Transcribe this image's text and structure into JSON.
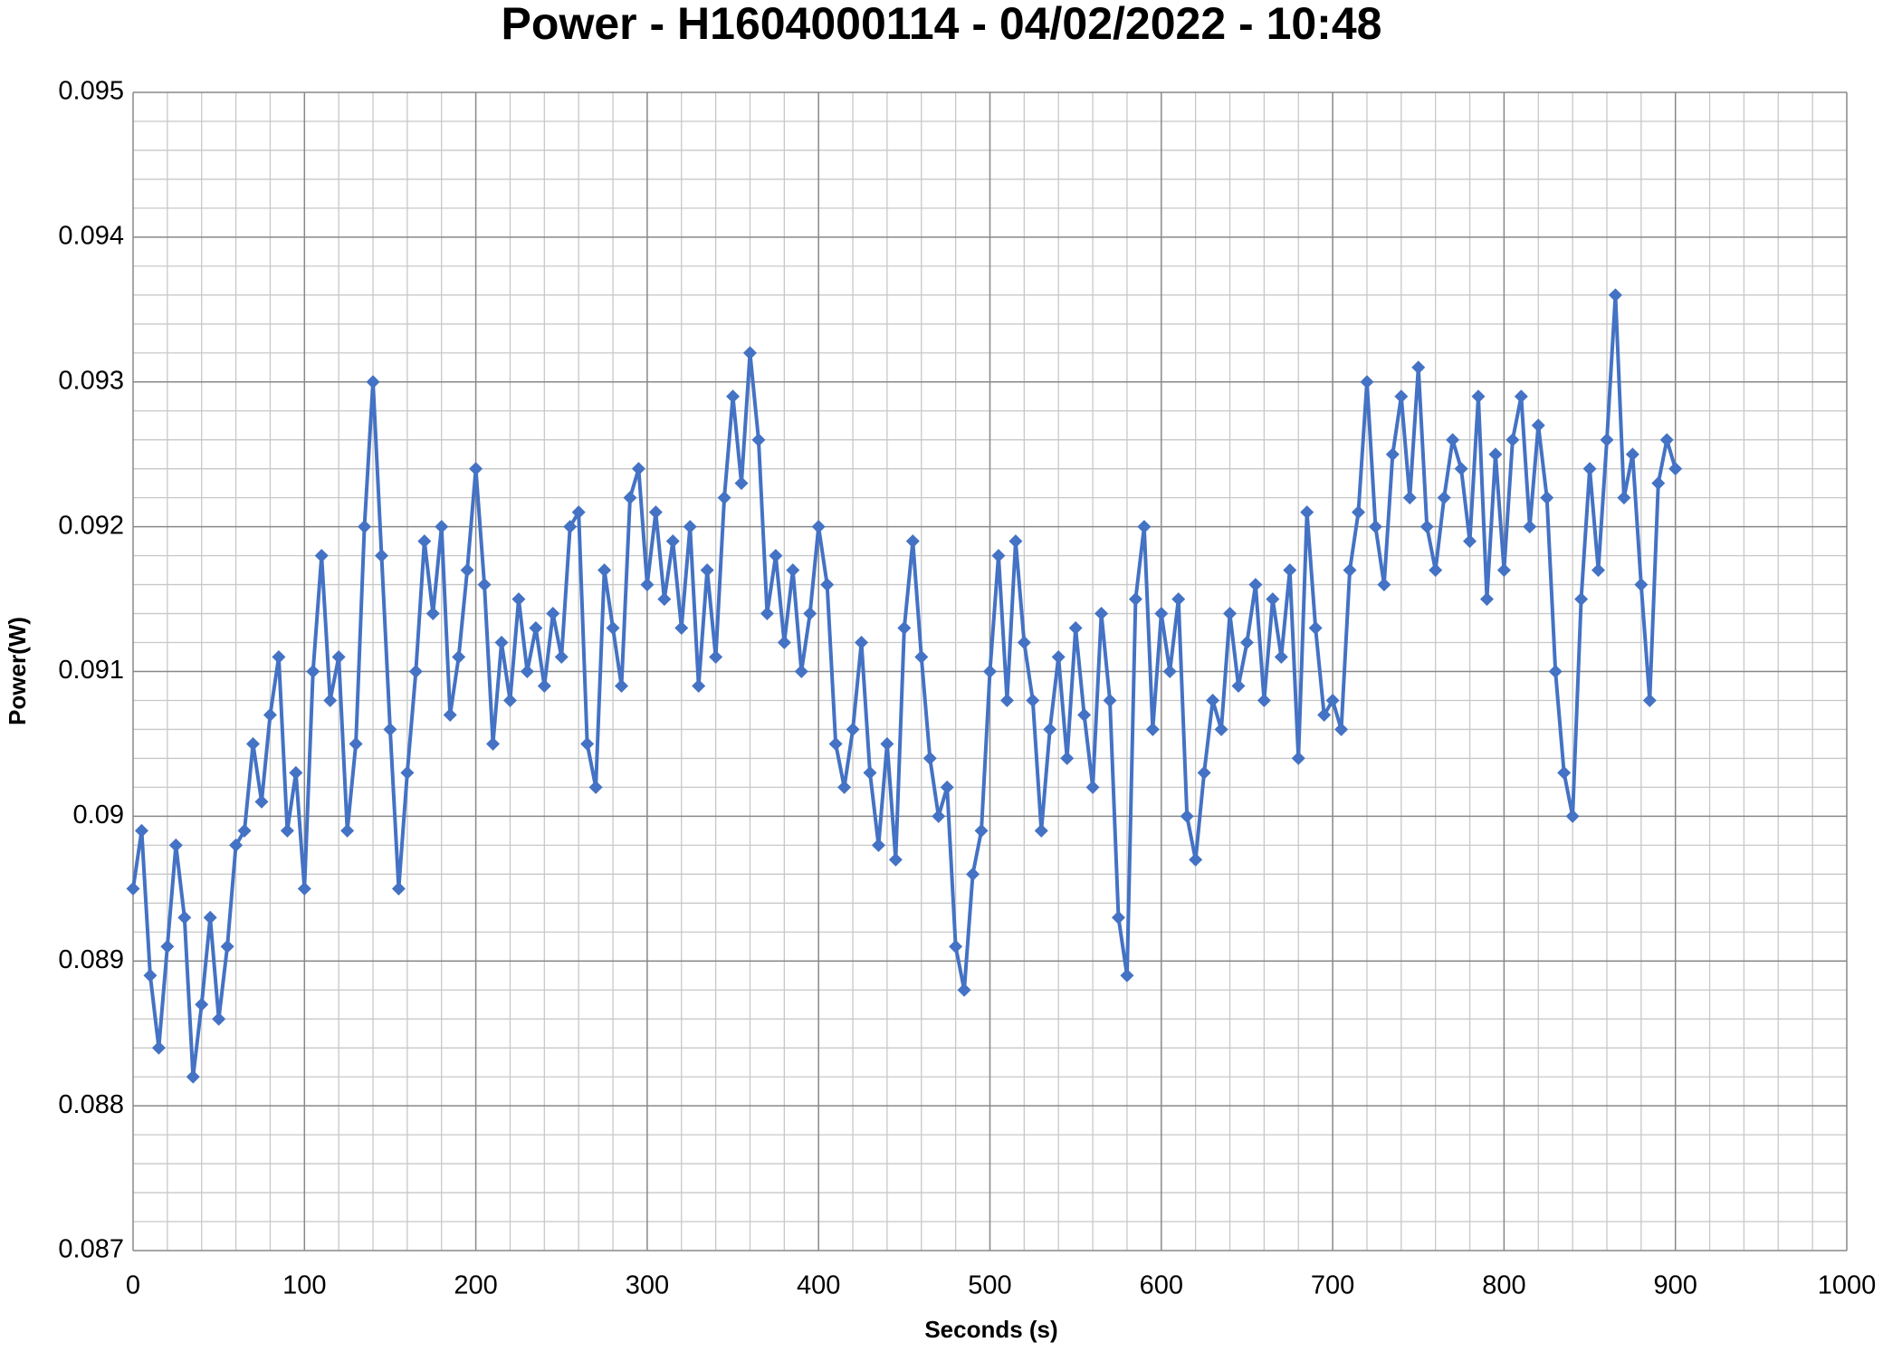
{
  "chart_data": {
    "type": "line",
    "title": "Power - H1604000114 - 04/02/2022 - 10:48",
    "x_label": "Seconds (s)",
    "y_label": "Power(W)",
    "color": "#4472c4",
    "marker": "diamond",
    "grid": true,
    "minor_divisions": 5,
    "xlim": [
      0,
      1000
    ],
    "xticks": [
      0,
      100,
      200,
      300,
      400,
      500,
      600,
      700,
      800,
      900,
      1000
    ],
    "ylim": [
      0.087,
      0.095
    ],
    "yticks": [
      0.087,
      0.088,
      0.089,
      0.09,
      0.091,
      0.092,
      0.093,
      0.094,
      0.095
    ],
    "x": [
      0,
      5,
      10,
      15,
      20,
      25,
      30,
      35,
      40,
      45,
      50,
      55,
      60,
      65,
      70,
      75,
      80,
      85,
      90,
      95,
      100,
      105,
      110,
      115,
      120,
      125,
      130,
      135,
      140,
      145,
      150,
      155,
      160,
      165,
      170,
      175,
      180,
      185,
      190,
      195,
      200,
      205,
      210,
      215,
      220,
      225,
      230,
      235,
      240,
      245,
      250,
      255,
      260,
      265,
      270,
      275,
      280,
      285,
      290,
      295,
      300,
      305,
      310,
      315,
      320,
      325,
      330,
      335,
      340,
      345,
      350,
      355,
      360,
      365,
      370,
      375,
      380,
      385,
      390,
      395,
      400,
      405,
      410,
      415,
      420,
      425,
      430,
      435,
      440,
      445,
      450,
      455,
      460,
      465,
      470,
      475,
      480,
      485,
      490,
      495,
      500,
      505,
      510,
      515,
      520,
      525,
      530,
      535,
      540,
      545,
      550,
      555,
      560,
      565,
      570,
      575,
      580,
      585,
      590,
      595,
      600,
      605,
      610,
      615,
      620,
      625,
      630,
      635,
      640,
      645,
      650,
      655,
      660,
      665,
      670,
      675,
      680,
      685,
      690,
      695,
      700,
      705,
      710,
      715,
      720,
      725,
      730,
      735,
      740,
      745,
      750,
      755,
      760,
      765,
      770,
      775,
      780,
      785,
      790,
      795,
      800,
      805,
      810,
      815,
      820,
      825,
      830,
      835,
      840,
      845,
      850,
      855,
      860,
      865,
      870,
      875,
      880,
      885,
      890,
      895,
      900
    ],
    "values": [
      0.0895,
      0.0899,
      0.0889,
      0.0884,
      0.0891,
      0.0898,
      0.0893,
      0.0882,
      0.0887,
      0.0893,
      0.0886,
      0.0891,
      0.0898,
      0.0899,
      0.0905,
      0.0901,
      0.0907,
      0.0911,
      0.0899,
      0.0903,
      0.0895,
      0.091,
      0.0918,
      0.0908,
      0.0911,
      0.0899,
      0.0905,
      0.092,
      0.093,
      0.0918,
      0.0906,
      0.0895,
      0.0903,
      0.091,
      0.0919,
      0.0914,
      0.092,
      0.0907,
      0.0911,
      0.0917,
      0.0924,
      0.0916,
      0.0905,
      0.0912,
      0.0908,
      0.0915,
      0.091,
      0.0913,
      0.0909,
      0.0914,
      0.0911,
      0.092,
      0.0921,
      0.0905,
      0.0902,
      0.0917,
      0.0913,
      0.0909,
      0.0922,
      0.0924,
      0.0916,
      0.0921,
      0.0915,
      0.0919,
      0.0913,
      0.092,
      0.0909,
      0.0917,
      0.0911,
      0.0922,
      0.0929,
      0.0923,
      0.0932,
      0.0926,
      0.0914,
      0.0918,
      0.0912,
      0.0917,
      0.091,
      0.0914,
      0.092,
      0.0916,
      0.0905,
      0.0902,
      0.0906,
      0.0912,
      0.0903,
      0.0898,
      0.0905,
      0.0897,
      0.0913,
      0.0919,
      0.0911,
      0.0904,
      0.09,
      0.0902,
      0.0891,
      0.0888,
      0.0896,
      0.0899,
      0.091,
      0.0918,
      0.0908,
      0.0919,
      0.0912,
      0.0908,
      0.0899,
      0.0906,
      0.0911,
      0.0904,
      0.0913,
      0.0907,
      0.0902,
      0.0914,
      0.0908,
      0.0893,
      0.0889,
      0.0915,
      0.092,
      0.0906,
      0.0914,
      0.091,
      0.0915,
      0.09,
      0.0897,
      0.0903,
      0.0908,
      0.0906,
      0.0914,
      0.0909,
      0.0912,
      0.0916,
      0.0908,
      0.0915,
      0.0911,
      0.0917,
      0.0904,
      0.0921,
      0.0913,
      0.0907,
      0.0908,
      0.0906,
      0.0917,
      0.0921,
      0.093,
      0.092,
      0.0916,
      0.0925,
      0.0929,
      0.0922,
      0.0931,
      0.092,
      0.0917,
      0.0922,
      0.0926,
      0.0924,
      0.0919,
      0.0929,
      0.0915,
      0.0925,
      0.0917,
      0.0926,
      0.0929,
      0.092,
      0.0927,
      0.0922,
      0.091,
      0.0903,
      0.09,
      0.0915,
      0.0924,
      0.0917,
      0.0926,
      0.0936,
      0.0922,
      0.0925,
      0.0916,
      0.0908,
      0.0923,
      0.0926,
      0.0924
    ]
  }
}
